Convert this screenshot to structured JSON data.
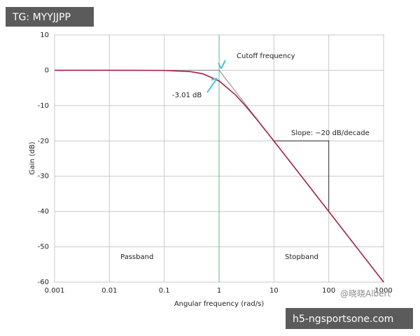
{
  "chart_data": {
    "type": "line",
    "x_label": "Angular frequency (rad/s)",
    "y_label": "Gain (dB)",
    "xscale": "log",
    "xlim": [
      0.001,
      1000
    ],
    "xticks": [
      0.001,
      0.01,
      0.1,
      1,
      10,
      100,
      1000
    ],
    "ylim": [
      -60,
      10
    ],
    "yticks": [
      10,
      0,
      -10,
      -20,
      -30,
      -40,
      -50,
      -60
    ],
    "grid": true,
    "series": [
      {
        "color": "#a3223c",
        "x": [
          0.001,
          0.01,
          0.1,
          0.3,
          0.5,
          1,
          2,
          3,
          5,
          10,
          30,
          100,
          1000
        ],
        "values": [
          0,
          0,
          -0.04,
          -0.37,
          -0.97,
          -3.01,
          -6.99,
          -10,
          -14.15,
          -20.04,
          -29.54,
          -40,
          -60
        ]
      },
      {
        "color": "#888888",
        "x": [
          0.001,
          1,
          1000
        ],
        "values": [
          0,
          0,
          -60
        ]
      },
      {
        "color": "#333333",
        "x": [
          10,
          100,
          100
        ],
        "values": [
          -20,
          -20,
          -40
        ]
      }
    ],
    "annotations": {
      "cutoff": "Cutoff frequency",
      "gain": "-3.01 dB",
      "slope": "Slope: −20 dB/decade",
      "passband": "Passband",
      "stopband": "Stopband"
    }
  },
  "overlays": {
    "top_left": "TG: MYYJJPP",
    "credit": "@晓晓Albert",
    "bottom_right": "h5-ngsportsone.com"
  }
}
